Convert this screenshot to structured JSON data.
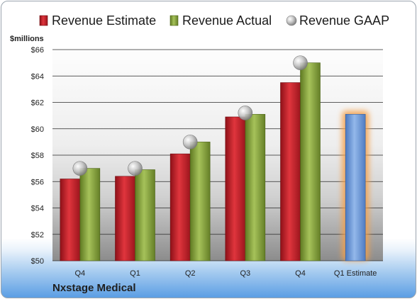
{
  "company": "Nxstage Medical",
  "chart_data": {
    "type": "bar",
    "ylabel": "$millions",
    "categories": [
      "Q4",
      "Q1",
      "Q2",
      "Q3",
      "Q4",
      "Q1 Estimate"
    ],
    "ylim": [
      50,
      66
    ],
    "yticks": [
      50,
      52,
      54,
      56,
      58,
      60,
      62,
      64,
      66
    ],
    "ytick_labels": [
      "$50",
      "$52",
      "$54",
      "$56",
      "$58",
      "$60",
      "$62",
      "$64",
      "$66"
    ],
    "grid": true,
    "legend_position": "top",
    "series": [
      {
        "name": "Revenue Estimate",
        "kind": "bar",
        "color": "#c8202a",
        "values": [
          56.2,
          56.4,
          58.1,
          60.9,
          63.5,
          null
        ]
      },
      {
        "name": "Revenue Actual",
        "kind": "bar",
        "color": "#8aa83c",
        "values": [
          57.0,
          56.9,
          59.0,
          61.1,
          65.0,
          null
        ]
      },
      {
        "name": "Revenue GAAP",
        "kind": "marker",
        "color": "#b9b9b9",
        "values": [
          57.0,
          57.0,
          59.0,
          61.2,
          65.0,
          null
        ]
      },
      {
        "name": "",
        "kind": "bar",
        "color": "#6f9bd6",
        "highlight": "#f5a04a",
        "values": [
          null,
          null,
          null,
          null,
          null,
          61.1
        ]
      }
    ]
  }
}
